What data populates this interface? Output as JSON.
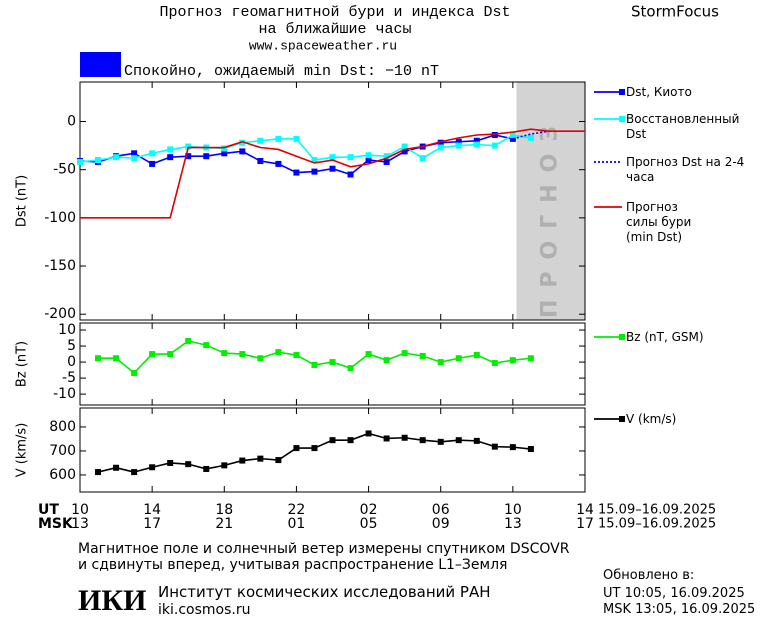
{
  "header": {
    "title": "Прогноз геомагнитной бури и индекса Dst",
    "subtitle": "на ближайшие часы",
    "url": "www.spaceweather.ru",
    "brand": "StormFocus"
  },
  "status": {
    "text": "Спокойно, ожидаемый min Dst: −10 nT",
    "color": "#0000ff"
  },
  "chart_data": [
    {
      "type": "line",
      "ylabel": "Dst (nT)",
      "xlim": [
        0,
        28
      ],
      "ylim": [
        -206,
        41
      ],
      "yticks": [
        0,
        -50,
        -100,
        -150,
        -200
      ],
      "forecast": {
        "xlim": [
          24.2,
          28
        ],
        "label": "ПРОГНОЗ",
        "color": "#d3d3d3"
      },
      "series": [
        {
          "name": "Dst, Киото",
          "color": "#0000ff",
          "marker": "square",
          "x": [
            0,
            1,
            2,
            3,
            4,
            5,
            6,
            7,
            8,
            9,
            10,
            11,
            12,
            13,
            14,
            15,
            16,
            17,
            18,
            19,
            20,
            21,
            22,
            23,
            24
          ],
          "values": [
            -41,
            -42,
            -36,
            -33,
            -44,
            -37,
            -36,
            -36,
            -33,
            -31,
            -41,
            -44,
            -53,
            -52,
            -49,
            -55,
            -40,
            -42,
            -31,
            -26,
            -22,
            -21,
            -20,
            -14,
            -18
          ]
        },
        {
          "name": "Восстановленный Dst",
          "color": "#00ffff",
          "marker": "square",
          "x": [
            0,
            1,
            2,
            3,
            4,
            5,
            6,
            7,
            8,
            9,
            10,
            11,
            12,
            13,
            14,
            15,
            16,
            17,
            18,
            19,
            20,
            21,
            22,
            23,
            24,
            25
          ],
          "values": [
            -42,
            -40,
            -37,
            -38,
            -33,
            -29,
            -26,
            -27,
            -28,
            -22,
            -20,
            -18,
            -18,
            -40,
            -37,
            -37,
            -35,
            -36,
            -26,
            -38,
            -27,
            -25,
            -24,
            -25,
            -14,
            -17
          ]
        },
        {
          "name": "Прогноз Dst на 2-4 часа",
          "color": "#0000ff",
          "dash": "dotted",
          "x": [
            24,
            25,
            26
          ],
          "values": [
            -18,
            -13,
            -10
          ]
        },
        {
          "name": "Прогноз силы бури (min Dst)",
          "color": "#e00000",
          "x": [
            0,
            5,
            6,
            7,
            8,
            9,
            10,
            11,
            12,
            13,
            14,
            15,
            16,
            17,
            18,
            19,
            20,
            21,
            22,
            23,
            24,
            25,
            26,
            27,
            28
          ],
          "values": [
            -100,
            -100,
            -27,
            -27,
            -27,
            -21,
            -27,
            -29,
            -36,
            -43,
            -40,
            -47,
            -44,
            -38,
            -29,
            -26,
            -21,
            -17,
            -14,
            -13,
            -11,
            -8,
            -10,
            -10,
            -10
          ]
        }
      ]
    },
    {
      "type": "line",
      "ylabel": "Bz (nT)",
      "xlim": [
        0,
        28
      ],
      "ylim": [
        -13.4,
        12.2
      ],
      "yticks": [
        10,
        5,
        0,
        -5,
        -10
      ],
      "series": [
        {
          "name": "Bz (nT, GSM)",
          "color": "#00ee00",
          "marker": "square",
          "x": [
            1,
            2,
            3,
            4,
            5,
            6,
            7,
            8,
            9,
            10,
            11,
            12,
            13,
            14,
            15,
            16,
            17,
            18,
            19,
            20,
            21,
            22,
            23,
            24,
            25
          ],
          "values": [
            1.2,
            1.2,
            -3.4,
            2.5,
            2.5,
            6.6,
            5.3,
            2.8,
            2.5,
            1.2,
            3.1,
            2.2,
            -0.9,
            0,
            -1.9,
            2.5,
            0.6,
            2.8,
            1.9,
            0,
            1.2,
            2.2,
            -0.3,
            0.6,
            1.2
          ]
        }
      ]
    },
    {
      "type": "line",
      "ylabel": "V (km/s)",
      "xlim": [
        0,
        28
      ],
      "ylim": [
        529,
        879
      ],
      "yticks": [
        800,
        700,
        600
      ],
      "xticks": [
        {
          "value": 0,
          "label": "10"
        },
        {
          "value": 4,
          "label": "14"
        },
        {
          "value": 8,
          "label": "18"
        },
        {
          "value": 12,
          "label": "22"
        },
        {
          "value": 16,
          "label": "02"
        },
        {
          "value": 20,
          "label": "06"
        },
        {
          "value": 24,
          "label": "10"
        },
        {
          "value": 28,
          "label": "14"
        }
      ],
      "xticks_msk": [
        "13",
        "17",
        "21",
        "01",
        "05",
        "09",
        "13",
        "17"
      ],
      "xlabel_ut": "UT",
      "xlabel_msk": "MSK",
      "xlabel_date": "15.09–16.09.2025",
      "series": [
        {
          "name": "V (km/s)",
          "color": "#000000",
          "marker": "square",
          "x": [
            1,
            2,
            3,
            4,
            5,
            6,
            7,
            8,
            9,
            10,
            11,
            12,
            13,
            14,
            15,
            16,
            17,
            18,
            19,
            20,
            21,
            22,
            23,
            24,
            25
          ],
          "values": [
            612,
            630,
            612,
            632,
            650,
            645,
            625,
            640,
            660,
            668,
            662,
            712,
            712,
            745,
            745,
            773,
            752,
            755,
            745,
            738,
            745,
            742,
            718,
            716,
            708
          ]
        }
      ]
    }
  ],
  "footer": {
    "note1": "Магнитное поле и солнечный ветер измерены спутником DSCOVR",
    "note2": "и сдвинуты вперед, учитывая распространение L1–Земля",
    "updated": "Обновлено в:",
    "updated_ut": "UT  10:05, 16.09.2025",
    "updated_msk": "MSK 13:05, 16.09.2025",
    "logo": "ИКИ",
    "institute": "Институт космических исследований РАН",
    "site": "iki.cosmos.ru"
  }
}
